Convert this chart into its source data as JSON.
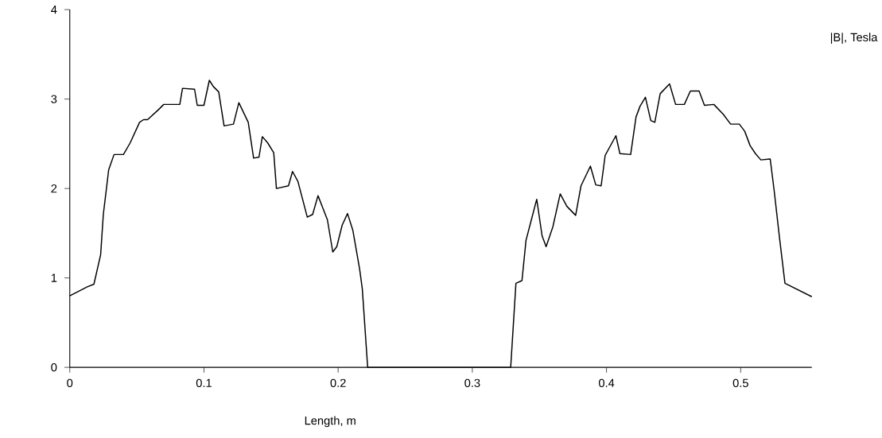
{
  "chart_data": {
    "type": "line",
    "xlabel": "Length, m",
    "ylabel": "|B|, Tesla",
    "xlim": [
      0,
      0.553
    ],
    "ylim": [
      0,
      4
    ],
    "xticks": [
      0,
      0.1,
      0.2,
      0.3,
      0.4,
      0.5
    ],
    "yticks": [
      0,
      1,
      2,
      3,
      4
    ],
    "line_style": "solid",
    "series": [
      {
        "color": "#000000",
        "x": [
          0,
          0.013,
          0.018,
          0.023,
          0.025,
          0.029,
          0.033,
          0.04,
          0.045,
          0.052,
          0.055,
          0.058,
          0.066,
          0.07,
          0.082,
          0.084,
          0.093,
          0.095,
          0.1,
          0.104,
          0.107,
          0.111,
          0.115,
          0.122,
          0.126,
          0.133,
          0.137,
          0.141,
          0.1435,
          0.1475,
          0.152,
          0.154,
          0.163,
          0.166,
          0.17,
          0.177,
          0.181,
          0.185,
          0.192,
          0.196,
          0.199,
          0.203,
          0.207,
          0.211,
          0.216,
          0.218,
          0.222,
          0.3286,
          0.3325,
          0.337,
          0.34,
          0.344,
          0.348,
          0.352,
          0.355,
          0.36,
          0.3655,
          0.3705,
          0.377,
          0.381,
          0.388,
          0.392,
          0.396,
          0.399,
          0.407,
          0.41,
          0.418,
          0.422,
          0.425,
          0.429,
          0.433,
          0.436,
          0.44,
          0.447,
          0.4515,
          0.458,
          0.4625,
          0.469,
          0.473,
          0.48,
          0.487,
          0.4925,
          0.499,
          0.503,
          0.507,
          0.511,
          0.515,
          0.522,
          0.525,
          0.529,
          0.533,
          0.553
        ],
        "values": [
          0.8,
          0.9,
          0.93,
          1.26,
          1.71,
          2.21,
          2.38,
          2.38,
          2.51,
          2.74,
          2.77,
          2.77,
          2.88,
          2.94,
          2.94,
          3.12,
          3.11,
          2.93,
          2.93,
          3.21,
          3.14,
          3.08,
          2.7,
          2.72,
          2.96,
          2.74,
          2.34,
          2.35,
          2.58,
          2.51,
          2.4,
          2.0,
          2.03,
          2.19,
          2.08,
          1.68,
          1.71,
          1.92,
          1.65,
          1.29,
          1.35,
          1.59,
          1.72,
          1.53,
          1.1,
          0.88,
          0,
          0,
          0.94,
          0.97,
          1.42,
          1.65,
          1.88,
          1.47,
          1.35,
          1.57,
          1.94,
          1.8,
          1.7,
          2.03,
          2.25,
          2.04,
          2.03,
          2.37,
          2.59,
          2.39,
          2.38,
          2.8,
          2.92,
          3.02,
          2.76,
          2.74,
          3.06,
          3.17,
          2.94,
          2.94,
          3.09,
          3.09,
          2.93,
          2.94,
          2.83,
          2.72,
          2.72,
          2.64,
          2.48,
          2.39,
          2.32,
          2.33,
          1.97,
          1.44,
          0.94,
          0.79
        ]
      }
    ]
  }
}
